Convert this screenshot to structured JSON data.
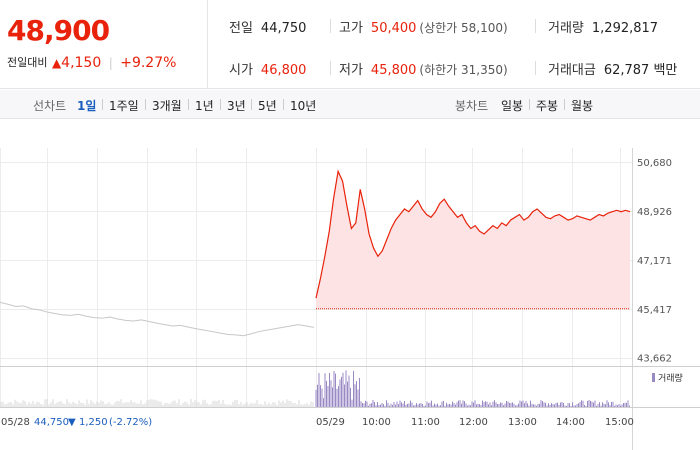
{
  "quote": {
    "price": "48,900",
    "change_label": "전일대비",
    "change_arrow": "▲",
    "change_value": "4,150",
    "change_pct": "+9.27%"
  },
  "stats": {
    "prev_close": {
      "label": "전일",
      "value": "44,750"
    },
    "high": {
      "label": "고가",
      "value": "50,400",
      "sub": "(상한가 58,100)"
    },
    "volume": {
      "label": "거래량",
      "value": "1,292,817"
    },
    "open": {
      "label": "시가",
      "value": "46,800"
    },
    "low": {
      "label": "저가",
      "value": "45,800",
      "sub": "(하한가 31,350)"
    },
    "amount": {
      "label": "거래대금",
      "value": "62,787 백만"
    }
  },
  "toolbar": {
    "line_label": "선차트",
    "line_items": [
      "1일",
      "1주일",
      "3개월",
      "1년",
      "3년",
      "5년",
      "10년"
    ],
    "active_index": 0,
    "candle_label": "봉차트",
    "candle_items": [
      "일봉",
      "주봉",
      "월봉"
    ]
  },
  "chart_data": {
    "type": "line",
    "y_ticks": [
      "50,680",
      "48,926",
      "47,171",
      "45,417",
      "43,662"
    ],
    "y_tick_values": [
      50680,
      48926,
      47171,
      45417,
      43662
    ],
    "ylim": [
      43400,
      50900
    ],
    "x_ticks": [
      "05/28",
      "05/29",
      "10:00",
      "11:00",
      "12:00",
      "13:00",
      "14:00",
      "15:00"
    ],
    "prev_day": {
      "date": "05/28",
      "close": "44,750",
      "change_arrow": "▼",
      "change": "1,250",
      "change_pct": "(-2.72%)",
      "values": [
        45650,
        45580,
        45500,
        45520,
        45420,
        45380,
        45300,
        45250,
        45200,
        45180,
        45220,
        45150,
        45100,
        45080,
        45120,
        45050,
        45000,
        44980,
        45020,
        44960,
        44900,
        44850,
        44800,
        44820,
        44760,
        44700,
        44650,
        44600,
        44550,
        44500,
        44480,
        44450,
        44520,
        44600,
        44650,
        44700,
        44750,
        44800,
        44850,
        44800,
        44750
      ]
    },
    "today": {
      "date": "05/29",
      "values": [
        45800,
        46500,
        47300,
        48200,
        49400,
        50350,
        50000,
        49100,
        48300,
        48500,
        49700,
        49000,
        48100,
        47600,
        47300,
        47500,
        47900,
        48300,
        48600,
        48800,
        49000,
        48900,
        49100,
        49300,
        49000,
        48800,
        48700,
        48900,
        49200,
        49350,
        49100,
        48900,
        48700,
        48800,
        48500,
        48300,
        48400,
        48200,
        48100,
        48250,
        48400,
        48300,
        48500,
        48400,
        48600,
        48700,
        48800,
        48600,
        48700,
        48900,
        49000,
        48850,
        48700,
        48650,
        48750,
        48800,
        48700,
        48600,
        48650,
        48750,
        48700,
        48650,
        48600,
        48700,
        48800,
        48750,
        48850,
        48900,
        48950,
        48900,
        48950,
        48900
      ],
      "fill_base": 45417
    },
    "volume_legend": "거래량"
  }
}
